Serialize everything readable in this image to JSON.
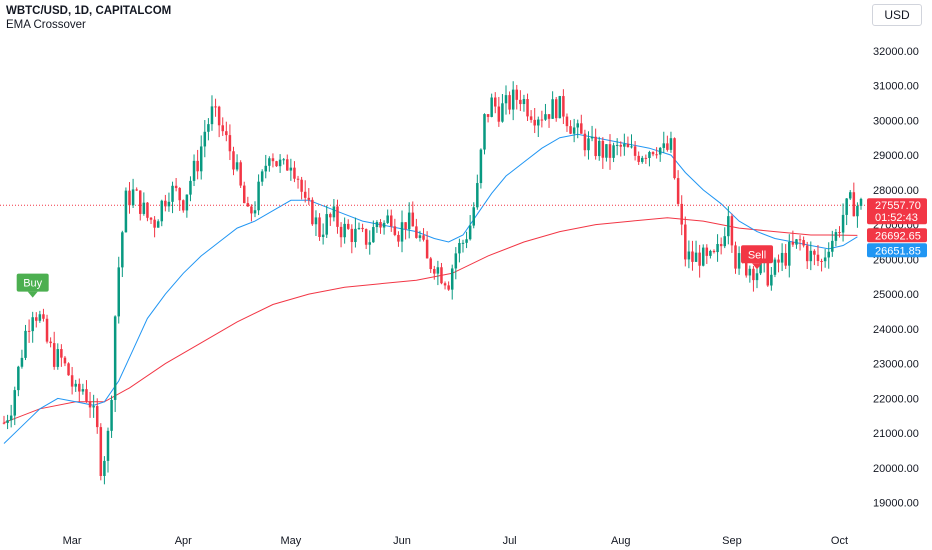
{
  "header": {
    "symbol": "WBTC/USD, 1D, CAPITALCOM",
    "indicator": "EMA Crossover",
    "currency": "USD"
  },
  "colors": {
    "up": "#089981",
    "down": "#f23645",
    "ema_fast": "#2196f3",
    "ema_slow": "#f23645",
    "buy": "#4caf50",
    "sell": "#f23645",
    "price_line": "#f23645",
    "tag_blue": "#2196f3"
  },
  "chart_data": {
    "type": "candlestick",
    "ylim": [
      18500,
      32600
    ],
    "y_ticks": [
      19000,
      20000,
      21000,
      22000,
      23000,
      24000,
      25000,
      26000,
      27000,
      28000,
      29000,
      30000,
      31000,
      32000
    ],
    "y_tick_labels": [
      "19000.00",
      "20000.00",
      "21000.00",
      "22000.00",
      "23000.00",
      "24000.00",
      "25000.00",
      "26000.00",
      "27000.00",
      "28000.00",
      "29000.00",
      "30000.00",
      "31000.00",
      "32000.00"
    ],
    "x_ticks": [
      {
        "label": "Mar",
        "day": 19
      },
      {
        "label": "Apr",
        "day": 50
      },
      {
        "label": "May",
        "day": 80
      },
      {
        "label": "Jun",
        "day": 111
      },
      {
        "label": "Jul",
        "day": 141
      },
      {
        "label": "Aug",
        "day": 172
      },
      {
        "label": "Sep",
        "day": 203
      },
      {
        "label": "Oct",
        "day": 233
      }
    ],
    "days_total": 239,
    "close_path": [
      [
        0,
        21300
      ],
      [
        2,
        21800
      ],
      [
        4,
        22800
      ],
      [
        6,
        23900
      ],
      [
        8,
        24600
      ],
      [
        10,
        24300
      ],
      [
        12,
        23600
      ],
      [
        14,
        23200
      ],
      [
        16,
        23100
      ],
      [
        18,
        22700
      ],
      [
        20,
        22100
      ],
      [
        22,
        22300
      ],
      [
        24,
        21900
      ],
      [
        26,
        21000
      ],
      [
        27,
        20100
      ],
      [
        28,
        20400
      ],
      [
        29,
        20900
      ],
      [
        30,
        22300
      ],
      [
        31,
        24400
      ],
      [
        32,
        25800
      ],
      [
        33,
        26800
      ],
      [
        34,
        27700
      ],
      [
        36,
        27900
      ],
      [
        38,
        27600
      ],
      [
        40,
        27200
      ],
      [
        42,
        27100
      ],
      [
        44,
        27600
      ],
      [
        46,
        28000
      ],
      [
        48,
        27900
      ],
      [
        50,
        27700
      ],
      [
        52,
        28300
      ],
      [
        54,
        28800
      ],
      [
        56,
        29700
      ],
      [
        58,
        30200
      ],
      [
        60,
        29900
      ],
      [
        62,
        29400
      ],
      [
        64,
        28900
      ],
      [
        66,
        28000
      ],
      [
        68,
        27200
      ],
      [
        70,
        27600
      ],
      [
        72,
        28300
      ],
      [
        74,
        29200
      ],
      [
        76,
        28800
      ],
      [
        78,
        28600
      ],
      [
        80,
        28900
      ],
      [
        82,
        28400
      ],
      [
        84,
        27500
      ],
      [
        86,
        27300
      ],
      [
        88,
        26800
      ],
      [
        90,
        27100
      ],
      [
        92,
        27200
      ],
      [
        94,
        26900
      ],
      [
        96,
        26800
      ],
      [
        98,
        26700
      ],
      [
        100,
        26600
      ],
      [
        102,
        26600
      ],
      [
        104,
        27100
      ],
      [
        106,
        27000
      ],
      [
        108,
        27300
      ],
      [
        110,
        26800
      ],
      [
        112,
        27100
      ],
      [
        114,
        26900
      ],
      [
        116,
        26600
      ],
      [
        118,
        25900
      ],
      [
        120,
        25900
      ],
      [
        122,
        25600
      ],
      [
        124,
        25400
      ],
      [
        126,
        26200
      ],
      [
        128,
        26500
      ],
      [
        130,
        27000
      ],
      [
        132,
        28000
      ],
      [
        134,
        30000
      ],
      [
        136,
        30500
      ],
      [
        138,
        30300
      ],
      [
        140,
        30400
      ],
      [
        142,
        30600
      ],
      [
        144,
        30700
      ],
      [
        146,
        30400
      ],
      [
        148,
        30200
      ],
      [
        150,
        30200
      ],
      [
        152,
        30300
      ],
      [
        154,
        30400
      ],
      [
        156,
        30300
      ],
      [
        158,
        29900
      ],
      [
        160,
        29600
      ],
      [
        162,
        29400
      ],
      [
        164,
        29200
      ],
      [
        166,
        29200
      ],
      [
        168,
        29000
      ],
      [
        170,
        29100
      ],
      [
        172,
        29200
      ],
      [
        174,
        29100
      ],
      [
        176,
        29000
      ],
      [
        178,
        29100
      ],
      [
        180,
        29200
      ],
      [
        182,
        29300
      ],
      [
        184,
        29100
      ],
      [
        186,
        29200
      ],
      [
        188,
        27500
      ],
      [
        190,
        26100
      ],
      [
        192,
        26000
      ],
      [
        194,
        26100
      ],
      [
        196,
        25900
      ],
      [
        198,
        26000
      ],
      [
        200,
        26400
      ],
      [
        202,
        27500
      ],
      [
        204,
        26000
      ],
      [
        206,
        25800
      ],
      [
        208,
        25800
      ],
      [
        210,
        25700
      ],
      [
        212,
        25600
      ],
      [
        214,
        25500
      ],
      [
        216,
        25900
      ],
      [
        218,
        26100
      ],
      [
        220,
        26300
      ],
      [
        222,
        26500
      ],
      [
        224,
        26200
      ],
      [
        226,
        26000
      ],
      [
        228,
        25900
      ],
      [
        230,
        26500
      ],
      [
        232,
        26700
      ],
      [
        234,
        27300
      ],
      [
        236,
        27600
      ],
      [
        238,
        27560
      ]
    ],
    "ema_fast": [
      [
        0,
        20700
      ],
      [
        5,
        21200
      ],
      [
        10,
        21700
      ],
      [
        15,
        22000
      ],
      [
        20,
        21900
      ],
      [
        25,
        21800
      ],
      [
        28,
        21900
      ],
      [
        32,
        22500
      ],
      [
        36,
        23400
      ],
      [
        40,
        24300
      ],
      [
        45,
        25000
      ],
      [
        50,
        25600
      ],
      [
        55,
        26100
      ],
      [
        60,
        26500
      ],
      [
        65,
        26900
      ],
      [
        70,
        27100
      ],
      [
        75,
        27400
      ],
      [
        80,
        27700
      ],
      [
        85,
        27700
      ],
      [
        90,
        27500
      ],
      [
        95,
        27300
      ],
      [
        100,
        27100
      ],
      [
        105,
        27000
      ],
      [
        110,
        26900
      ],
      [
        115,
        26800
      ],
      [
        120,
        26600
      ],
      [
        124,
        26500
      ],
      [
        128,
        26700
      ],
      [
        132,
        27300
      ],
      [
        136,
        27900
      ],
      [
        140,
        28400
      ],
      [
        145,
        28800
      ],
      [
        150,
        29200
      ],
      [
        155,
        29500
      ],
      [
        160,
        29600
      ],
      [
        165,
        29500
      ],
      [
        170,
        29400
      ],
      [
        175,
        29300
      ],
      [
        180,
        29200
      ],
      [
        186,
        29000
      ],
      [
        190,
        28500
      ],
      [
        195,
        28000
      ],
      [
        200,
        27600
      ],
      [
        205,
        27100
      ],
      [
        210,
        26800
      ],
      [
        215,
        26600
      ],
      [
        220,
        26500
      ],
      [
        225,
        26400
      ],
      [
        230,
        26300
      ],
      [
        234,
        26400
      ],
      [
        238,
        26650
      ]
    ],
    "ema_slow": [
      [
        0,
        21300
      ],
      [
        10,
        21700
      ],
      [
        20,
        21900
      ],
      [
        28,
        21900
      ],
      [
        35,
        22300
      ],
      [
        45,
        23000
      ],
      [
        55,
        23600
      ],
      [
        65,
        24200
      ],
      [
        75,
        24700
      ],
      [
        85,
        25000
      ],
      [
        95,
        25200
      ],
      [
        105,
        25300
      ],
      [
        115,
        25400
      ],
      [
        125,
        25600
      ],
      [
        135,
        26100
      ],
      [
        145,
        26500
      ],
      [
        155,
        26800
      ],
      [
        165,
        27000
      ],
      [
        175,
        27100
      ],
      [
        185,
        27200
      ],
      [
        195,
        27100
      ],
      [
        205,
        26900
      ],
      [
        215,
        26800
      ],
      [
        225,
        26700
      ],
      [
        230,
        26700
      ],
      [
        238,
        26690
      ]
    ],
    "signals": [
      {
        "label": "Buy",
        "day": 8,
        "price": 24900,
        "side": "buy"
      },
      {
        "label": "Sell",
        "day": 210,
        "price": 25600,
        "side": "sell"
      }
    ],
    "price_tags": [
      {
        "price": 27557.7,
        "label": "27557.70",
        "sub": "01:52:43",
        "color": "#f23645"
      },
      {
        "price": 26692.65,
        "label": "26692.65",
        "color": "#f23645"
      },
      {
        "price": 26651.85,
        "label": "26651.85",
        "color": "#2196f3"
      }
    ],
    "last_price": 27557.7
  }
}
